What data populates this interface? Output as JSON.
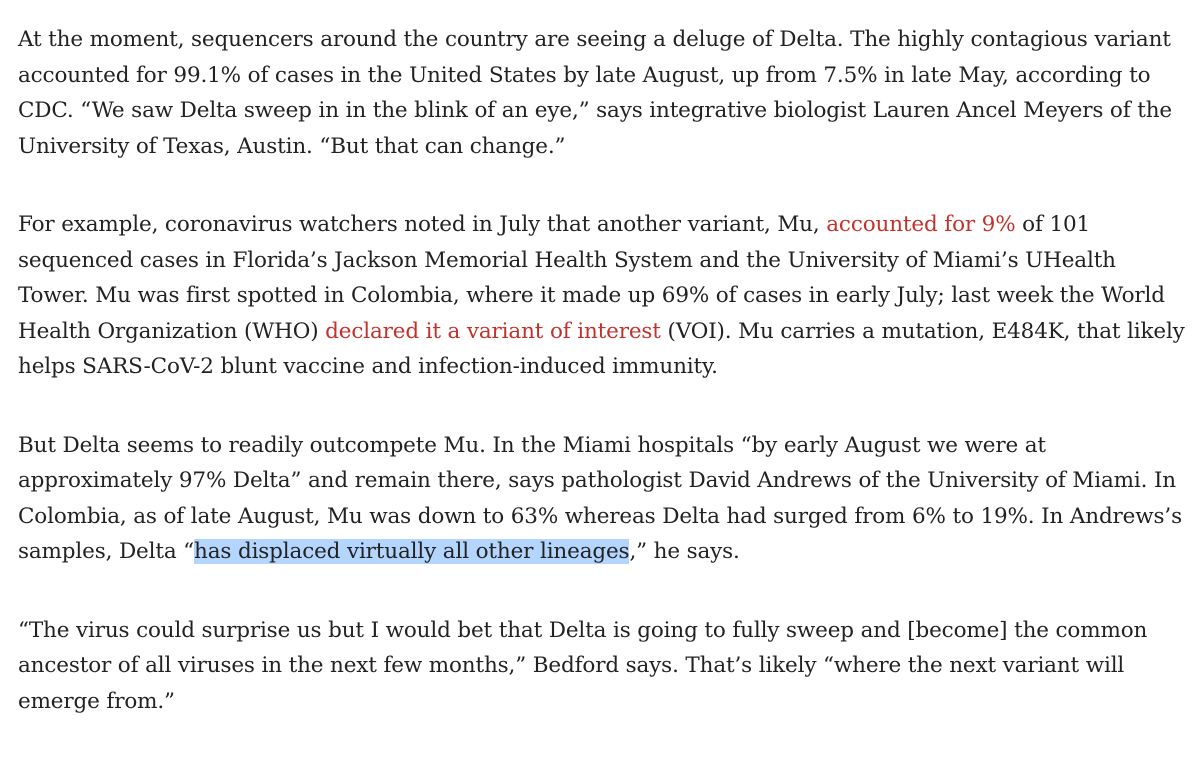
{
  "article": {
    "paragraphs": [
      {
        "segments": [
          {
            "text": "At the moment, sequencers around the country are seeing a deluge of Delta. The highly contagious variant accounted for 99.1% of cases in the United States by late August, up from 7.5% in late May, according to CDC. “We saw Delta sweep in in the blink of an eye,” says integrative biologist Lauren Ancel Meyers of the University of Texas, Austin. “But that can change.”"
          }
        ]
      },
      {
        "segments": [
          {
            "text": "For example, coronavirus watchers noted in July that another variant, Mu, "
          },
          {
            "text": "accounted for 9%",
            "link": true
          },
          {
            "text": " of 101 sequenced cases in Florida’s Jackson Memorial Health System and the University of Miami’s UHealth Tower. Mu was first spotted in Colombia, where it made up 69% of cases in early July; last week the World Health Organization (WHO) "
          },
          {
            "text": "declared it a variant of interest",
            "link": true
          },
          {
            "text": " (VOI). Mu carries a mutation, E484K, that likely helps SARS-CoV-2 blunt vaccine and infection-induced immunity."
          }
        ]
      },
      {
        "segments": [
          {
            "text": "But Delta seems to readily outcompete Mu. In the Miami hospitals “by early August we were at approximately 97% Delta” and remain there, says pathologist David Andrews of the University of Miami. In Colombia, as of late August, Mu was down to 63% whereas Delta had surged from 6% to 19%. In Andrews’s samples, Delta “"
          },
          {
            "text": "has displaced virtually all other lineages",
            "highlight": true
          },
          {
            "text": ",” he says."
          }
        ]
      },
      {
        "segments": [
          {
            "text": "“The virus could surprise us but I would bet that Delta is going to fully sweep and [become] the common ancestor of all viruses in the next few months,” Bedford says. That’s likely “where the next variant will emerge from.”"
          }
        ]
      }
    ]
  }
}
